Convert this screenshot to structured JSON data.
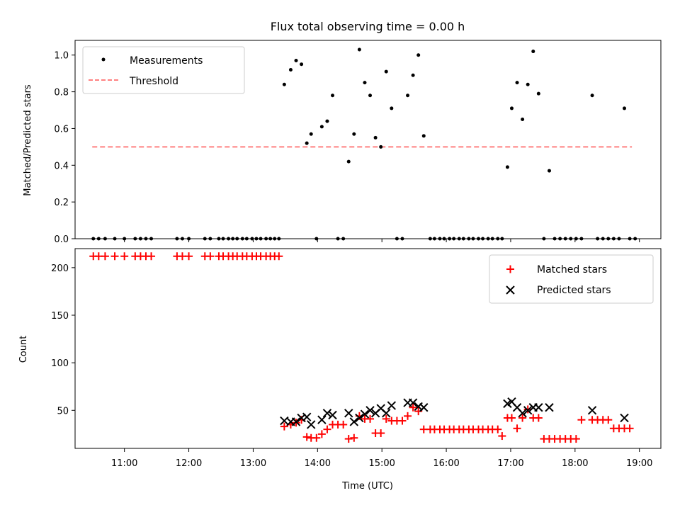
{
  "chart_data": [
    {
      "type": "scatter",
      "title": "Flux total observing time = 0.00 h",
      "ylabel": "Matched/Predicted stars",
      "xlabel": "",
      "xlim": [
        "10:14",
        "19:20"
      ],
      "ylim": [
        0,
        1.08
      ],
      "yticks": [
        "0.0",
        "0.2",
        "0.4",
        "0.6",
        "0.8",
        "1.0"
      ],
      "grid": false,
      "legend_position": "top-left",
      "legend": [
        {
          "label": "Measurements",
          "marker": "dot",
          "color": "#000000"
        },
        {
          "label": "Threshold",
          "marker": "dashed-line",
          "color": "#ff8080"
        }
      ],
      "threshold": {
        "value": 0.5,
        "x_start": "10:30",
        "x_end": "18:53",
        "color": "#ff8080"
      },
      "series": [
        {
          "name": "Measurements",
          "color": "#000000",
          "points": [
            [
              "10:31",
              0
            ],
            [
              "10:36",
              0
            ],
            [
              "10:42",
              0
            ],
            [
              "10:51",
              0
            ],
            [
              "11:00",
              0
            ],
            [
              "11:10",
              0
            ],
            [
              "11:15",
              0
            ],
            [
              "11:20",
              0
            ],
            [
              "11:25",
              0
            ],
            [
              "11:49",
              0
            ],
            [
              "11:54",
              0
            ],
            [
              "12:00",
              0
            ],
            [
              "12:15",
              0
            ],
            [
              "12:20",
              0
            ],
            [
              "12:28",
              0
            ],
            [
              "12:32",
              0
            ],
            [
              "12:37",
              0
            ],
            [
              "12:41",
              0
            ],
            [
              "12:45",
              0
            ],
            [
              "12:50",
              0
            ],
            [
              "12:54",
              0
            ],
            [
              "12:59",
              0
            ],
            [
              "13:03",
              0
            ],
            [
              "13:07",
              0
            ],
            [
              "13:12",
              0
            ],
            [
              "13:16",
              0
            ],
            [
              "13:20",
              0
            ],
            [
              "13:24",
              0
            ],
            [
              "13:29",
              0.84
            ],
            [
              "13:35",
              0.92
            ],
            [
              "13:40",
              0.97
            ],
            [
              "13:45",
              0.95
            ],
            [
              "13:50",
              0.52
            ],
            [
              "13:54",
              0.57
            ],
            [
              "13:59",
              0
            ],
            [
              "14:04",
              0.61
            ],
            [
              "14:09",
              0.64
            ],
            [
              "14:14",
              0.78
            ],
            [
              "14:19",
              0
            ],
            [
              "14:24",
              0
            ],
            [
              "14:29",
              0.42
            ],
            [
              "14:34",
              0.57
            ],
            [
              "14:39",
              1.03
            ],
            [
              "14:44",
              0.85
            ],
            [
              "14:49",
              0.78
            ],
            [
              "14:54",
              0.55
            ],
            [
              "14:59",
              0.5
            ],
            [
              "15:04",
              0.91
            ],
            [
              "15:09",
              0.71
            ],
            [
              "15:14",
              0
            ],
            [
              "15:19",
              0
            ],
            [
              "15:24",
              0.78
            ],
            [
              "15:29",
              0.89
            ],
            [
              "15:34",
              1.0
            ],
            [
              "15:39",
              0.56
            ],
            [
              "15:45",
              0
            ],
            [
              "15:49",
              0
            ],
            [
              "15:54",
              0
            ],
            [
              "15:58",
              0
            ],
            [
              "16:03",
              0
            ],
            [
              "16:07",
              0
            ],
            [
              "16:12",
              0
            ],
            [
              "16:16",
              0
            ],
            [
              "16:21",
              0
            ],
            [
              "16:25",
              0
            ],
            [
              "16:30",
              0
            ],
            [
              "16:34",
              0
            ],
            [
              "16:39",
              0
            ],
            [
              "16:43",
              0
            ],
            [
              "16:48",
              0
            ],
            [
              "16:52",
              0
            ],
            [
              "16:57",
              0.39
            ],
            [
              "17:01",
              0.71
            ],
            [
              "17:06",
              0.85
            ],
            [
              "17:11",
              0.65
            ],
            [
              "17:16",
              0.84
            ],
            [
              "17:21",
              1.02
            ],
            [
              "17:26",
              0.79
            ],
            [
              "17:31",
              0
            ],
            [
              "17:36",
              0.37
            ],
            [
              "17:41",
              0
            ],
            [
              "17:46",
              0
            ],
            [
              "17:51",
              0
            ],
            [
              "17:56",
              0
            ],
            [
              "18:01",
              0
            ],
            [
              "18:06",
              0
            ],
            [
              "18:16",
              0.78
            ],
            [
              "18:21",
              0
            ],
            [
              "18:26",
              0
            ],
            [
              "18:31",
              0
            ],
            [
              "18:36",
              0
            ],
            [
              "18:41",
              0
            ],
            [
              "18:46",
              0.71
            ],
            [
              "18:51",
              0
            ],
            [
              "18:56",
              0
            ]
          ]
        }
      ]
    },
    {
      "type": "scatter",
      "title": "",
      "xlabel": "Time (UTC)",
      "ylabel": "Count",
      "xlim": [
        "10:14",
        "19:20"
      ],
      "ylim": [
        10,
        220
      ],
      "xticks": [
        "11:00",
        "12:00",
        "13:00",
        "14:00",
        "15:00",
        "16:00",
        "17:00",
        "18:00",
        "19:00"
      ],
      "yticks": [
        "50",
        "100",
        "150",
        "200"
      ],
      "grid": false,
      "legend_position": "top-right",
      "legend": [
        {
          "label": "Matched stars",
          "marker": "plus",
          "color": "#ff0000"
        },
        {
          "label": "Predicted stars",
          "marker": "x",
          "color": "#000000"
        }
      ],
      "series": [
        {
          "name": "Matched stars",
          "marker": "plus",
          "color": "#ff0000",
          "points": [
            [
              "10:31",
              212
            ],
            [
              "10:36",
              212
            ],
            [
              "10:42",
              212
            ],
            [
              "10:51",
              212
            ],
            [
              "11:00",
              212
            ],
            [
              "11:10",
              212
            ],
            [
              "11:15",
              212
            ],
            [
              "11:20",
              212
            ],
            [
              "11:25",
              212
            ],
            [
              "11:49",
              212
            ],
            [
              "11:54",
              212
            ],
            [
              "12:00",
              212
            ],
            [
              "12:15",
              212
            ],
            [
              "12:20",
              212
            ],
            [
              "12:28",
              212
            ],
            [
              "12:32",
              212
            ],
            [
              "12:37",
              212
            ],
            [
              "12:41",
              212
            ],
            [
              "12:45",
              212
            ],
            [
              "12:50",
              212
            ],
            [
              "12:54",
              212
            ],
            [
              "12:59",
              212
            ],
            [
              "13:03",
              212
            ],
            [
              "13:07",
              212
            ],
            [
              "13:12",
              212
            ],
            [
              "13:16",
              212
            ],
            [
              "13:20",
              212
            ],
            [
              "13:24",
              212
            ],
            [
              "13:29",
              33
            ],
            [
              "13:35",
              35
            ],
            [
              "13:40",
              37
            ],
            [
              "13:45",
              40
            ],
            [
              "13:50",
              22
            ],
            [
              "13:54",
              21
            ],
            [
              "13:59",
              21
            ],
            [
              "14:04",
              25
            ],
            [
              "14:09",
              30
            ],
            [
              "14:14",
              35
            ],
            [
              "14:19",
              35
            ],
            [
              "14:24",
              35
            ],
            [
              "14:29",
              20
            ],
            [
              "14:34",
              21
            ],
            [
              "14:39",
              44
            ],
            [
              "14:44",
              41
            ],
            [
              "14:49",
              41
            ],
            [
              "14:54",
              26
            ],
            [
              "14:59",
              26
            ],
            [
              "15:04",
              41
            ],
            [
              "15:09",
              39
            ],
            [
              "15:14",
              39
            ],
            [
              "15:19",
              39
            ],
            [
              "15:24",
              44
            ],
            [
              "15:29",
              53
            ],
            [
              "15:34",
              49
            ],
            [
              "15:39",
              30
            ],
            [
              "15:45",
              30
            ],
            [
              "15:49",
              30
            ],
            [
              "15:54",
              30
            ],
            [
              "15:58",
              30
            ],
            [
              "16:03",
              30
            ],
            [
              "16:07",
              30
            ],
            [
              "16:12",
              30
            ],
            [
              "16:16",
              30
            ],
            [
              "16:21",
              30
            ],
            [
              "16:25",
              30
            ],
            [
              "16:30",
              30
            ],
            [
              "16:34",
              30
            ],
            [
              "16:39",
              30
            ],
            [
              "16:43",
              30
            ],
            [
              "16:48",
              30
            ],
            [
              "16:52",
              23
            ],
            [
              "16:57",
              42
            ],
            [
              "17:01",
              42
            ],
            [
              "17:06",
              31
            ],
            [
              "17:11",
              42
            ],
            [
              "17:16",
              51
            ],
            [
              "17:21",
              42
            ],
            [
              "17:26",
              42
            ],
            [
              "17:31",
              20
            ],
            [
              "17:36",
              20
            ],
            [
              "17:41",
              20
            ],
            [
              "17:46",
              20
            ],
            [
              "17:51",
              20
            ],
            [
              "17:56",
              20
            ],
            [
              "18:01",
              20
            ],
            [
              "18:06",
              40
            ],
            [
              "18:16",
              40
            ],
            [
              "18:21",
              40
            ],
            [
              "18:26",
              40
            ],
            [
              "18:31",
              40
            ],
            [
              "18:36",
              31
            ],
            [
              "18:41",
              31
            ],
            [
              "18:46",
              31
            ],
            [
              "18:51",
              31
            ]
          ]
        },
        {
          "name": "Predicted stars",
          "marker": "x",
          "color": "#000000",
          "points": [
            [
              "13:29",
              39
            ],
            [
              "13:35",
              38
            ],
            [
              "13:40",
              38
            ],
            [
              "13:45",
              42
            ],
            [
              "13:50",
              43
            ],
            [
              "13:54",
              35
            ],
            [
              "14:04",
              40
            ],
            [
              "14:09",
              47
            ],
            [
              "14:14",
              45
            ],
            [
              "14:29",
              47
            ],
            [
              "14:34",
              38
            ],
            [
              "14:39",
              42
            ],
            [
              "14:44",
              46
            ],
            [
              "14:49",
              50
            ],
            [
              "14:54",
              47
            ],
            [
              "14:59",
              52
            ],
            [
              "15:04",
              47
            ],
            [
              "15:09",
              55
            ],
            [
              "15:24",
              58
            ],
            [
              "15:29",
              58
            ],
            [
              "15:34",
              54
            ],
            [
              "15:39",
              53
            ],
            [
              "16:57",
              57
            ],
            [
              "17:01",
              59
            ],
            [
              "17:06",
              53
            ],
            [
              "17:11",
              47
            ],
            [
              "17:16",
              50
            ],
            [
              "17:21",
              53
            ],
            [
              "17:26",
              53
            ],
            [
              "17:36",
              53
            ],
            [
              "18:16",
              50
            ],
            [
              "18:46",
              42
            ]
          ]
        }
      ]
    }
  ]
}
